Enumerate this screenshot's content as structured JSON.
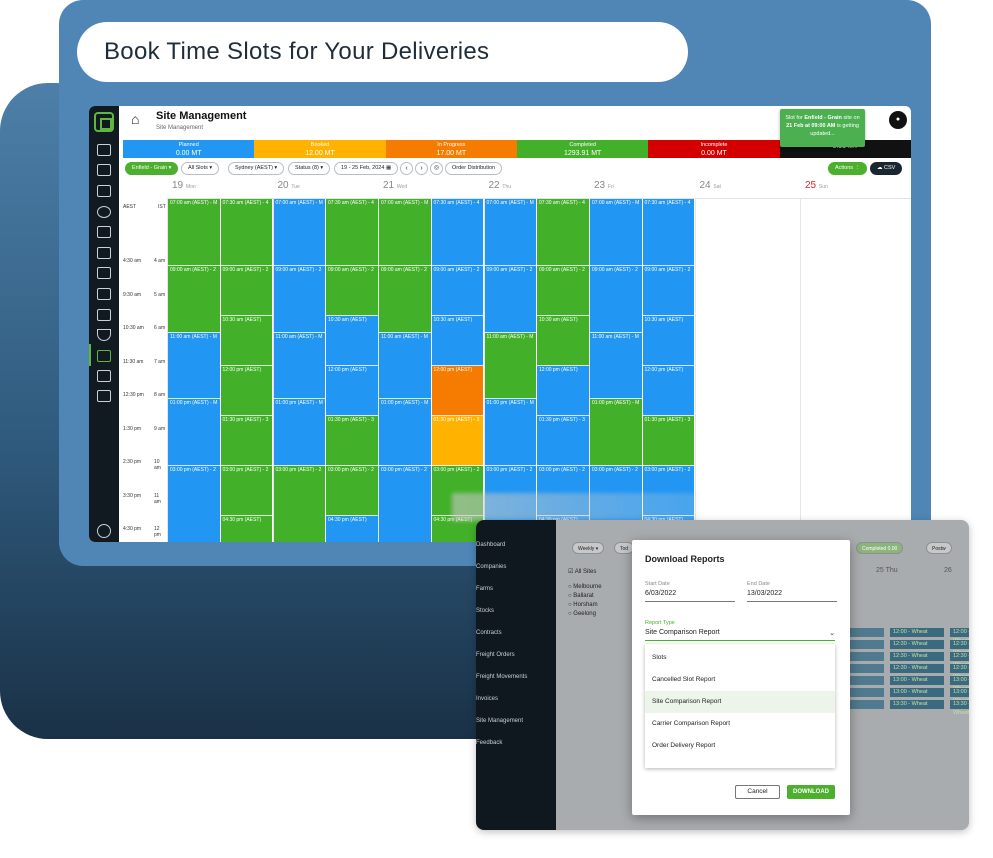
{
  "headline": "Book Time Slots for Your Deliveries",
  "header": {
    "title": "Site Management",
    "breadcrumb": "Site Management"
  },
  "status": [
    {
      "label": "Planned",
      "value": "0.00 MT",
      "color": "#2196f3"
    },
    {
      "label": "Booked",
      "value": "12.00 MT",
      "color": "#ffb300"
    },
    {
      "label": "In Progress",
      "value": "17.00 MT",
      "color": "#f57c00"
    },
    {
      "label": "Completed",
      "value": "1293.91 MT",
      "color": "#43b02a"
    },
    {
      "label": "Incomplete",
      "value": "0.00 MT",
      "color": "#d40000"
    },
    {
      "label": "",
      "value": "0.00 MT",
      "color": "#111111"
    }
  ],
  "filters": {
    "site": "Enfield - Grain",
    "slots": "All Slots",
    "timezone": "Sydney (AEST)",
    "status": "Status (8)",
    "daterange": "19 - 25 Feb, 2024",
    "order_distribution": "Order Distribution",
    "actions": "Actions",
    "csv": "CSV"
  },
  "toast": {
    "pre": "Slot for ",
    "site": "Enfield - Grain",
    "mid": " site on ",
    "date": "21 Feb at 09:00 AM",
    "post": " is getting updated..."
  },
  "days": [
    {
      "num": "19",
      "name": "Mon"
    },
    {
      "num": "20",
      "name": "Tue"
    },
    {
      "num": "21",
      "name": "Wed"
    },
    {
      "num": "22",
      "name": "Thu"
    },
    {
      "num": "23",
      "name": "Fri"
    },
    {
      "num": "24",
      "name": "Sat"
    },
    {
      "num": "25",
      "name": "Sun"
    }
  ],
  "tz": {
    "a": "AEST",
    "b": "IST"
  },
  "times": [
    {
      "a": "4:30 am",
      "b": "4 am"
    },
    {
      "a": "9:30 am",
      "b": "5 am"
    },
    {
      "a": "10:30 am",
      "b": "6 am"
    },
    {
      "a": "11:30 am",
      "b": "7 am"
    },
    {
      "a": "12:30 pm",
      "b": "8 am"
    },
    {
      "a": "1:30 pm",
      "b": "9 am"
    },
    {
      "a": "2:30 pm",
      "b": "10 am"
    },
    {
      "a": "3:30 pm",
      "b": "11 am"
    },
    {
      "a": "4:30 pm",
      "b": "12 pm"
    }
  ],
  "slot_labels": {
    "s0700": "07:00 am (AEST) - M",
    "s0730": "07:30 am (AEST) - 4",
    "s0900": "09:00 am (AEST) - 2",
    "s1030": "10:30 am (AEST)",
    "s1100": "11:00 am (AEST) - M",
    "s1200": "12:00 pm (AEST)",
    "s0100": "01:00 pm (AEST) - M",
    "s0130": "01:30 pm (AEST) - 3",
    "s0300": "03:00 pm (AEST) - 2",
    "s0430": "04:30 pm (AEST)",
    "s0500": "05:00 pm (AEST) - M"
  },
  "reports": {
    "sidebar": [
      "Dashboard",
      "Companies",
      "Farms",
      "Stocks",
      "Contracts",
      "Freight Orders",
      "Freight Movements",
      "Invoices",
      "Site Management",
      "Feedback"
    ],
    "top_chips": [
      "Weekly",
      "Tod",
      "Completed 0.00",
      "Postw"
    ],
    "sites_header": "All Sites",
    "sites": [
      "Melbourne",
      "Ballarat",
      "Horsham",
      "Geelong"
    ],
    "day_head": [
      "25 Thu",
      "26"
    ],
    "wheat_rows": [
      "12:00 - Wheat",
      "12:30 - Wheat",
      "12:30 - Wheat",
      "12:30 - Wheat",
      "13:00 - Wheat",
      "13:00 - Wheat",
      "13:30 - Wheat"
    ],
    "wheat_left": [
      "heat",
      "heat",
      "heat",
      "heat",
      "heat",
      "heat",
      "heat"
    ]
  },
  "modal": {
    "title": "Download Reports",
    "start_label": "Start Date",
    "start_value": "6/03/2022",
    "end_label": "End Date",
    "end_value": "13/03/2022",
    "type_label": "Report Type",
    "type_value": "Site Comparison Report",
    "options": [
      "Slots",
      "Cancelled Slot Report",
      "Site Comparison Report",
      "Carrier Comparison Report",
      "Order Delivery Report"
    ],
    "cancel": "Cancel",
    "download": "DOWNLOAD"
  }
}
